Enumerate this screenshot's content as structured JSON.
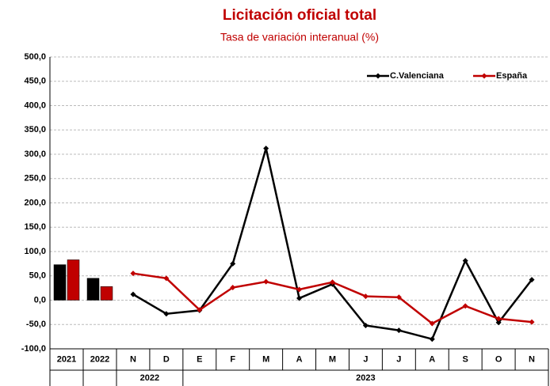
{
  "chart_data": {
    "type": "bar_line",
    "title": "Licitación oficial total",
    "subtitle": "Tasa de variación interanual (%)",
    "bar_categories": [
      "2021",
      "2022"
    ],
    "groups": [
      {
        "label": "2022",
        "categories": [
          "N",
          "D"
        ]
      },
      {
        "label": "2023",
        "categories": [
          "E",
          "F",
          "M",
          "A",
          "M",
          "J",
          "J",
          "A",
          "S",
          "O",
          "N"
        ]
      }
    ],
    "series": [
      {
        "name": "C.Valenciana",
        "color": "#000000",
        "bar_values": [
          73,
          45
        ],
        "values": [
          12,
          -28,
          -21,
          75,
          312,
          4,
          33,
          -52,
          -62,
          -80,
          81,
          -46,
          42
        ]
      },
      {
        "name": "España",
        "color": "#c00000",
        "bar_values": [
          83,
          28
        ],
        "values": [
          55,
          45,
          -20,
          26,
          38,
          22,
          37,
          8,
          6,
          -48,
          -12,
          -38,
          -45
        ]
      }
    ],
    "ylim": [
      -100,
      500
    ],
    "yticks": [
      {
        "value": -100,
        "label": "-100,0"
      },
      {
        "value": -50,
        "label": "-50,0"
      },
      {
        "value": 0,
        "label": "0,0"
      },
      {
        "value": 50,
        "label": "50,0"
      },
      {
        "value": 100,
        "label": "100,0"
      },
      {
        "value": 150,
        "label": "150,0"
      },
      {
        "value": 200,
        "label": "200,0"
      },
      {
        "value": 250,
        "label": "250,0"
      },
      {
        "value": 300,
        "label": "300,0"
      },
      {
        "value": 350,
        "label": "350,0"
      },
      {
        "value": 400,
        "label": "400,0"
      },
      {
        "value": 450,
        "label": "450,0"
      },
      {
        "value": 500,
        "label": "500,0"
      }
    ],
    "grid": true,
    "legend": "top-right"
  }
}
